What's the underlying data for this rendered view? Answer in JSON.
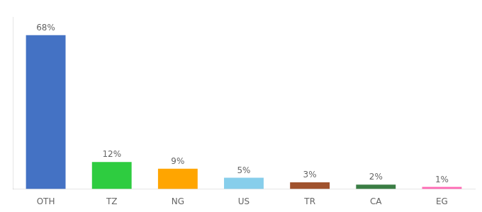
{
  "chart_data": {
    "type": "bar",
    "categories": [
      "OTH",
      "TZ",
      "NG",
      "US",
      "TR",
      "CA",
      "EG"
    ],
    "values": [
      68,
      12,
      9,
      5,
      3,
      2,
      1
    ],
    "value_labels": [
      "68%",
      "12%",
      "9%",
      "5%",
      "3%",
      "2%",
      "1%"
    ],
    "colors": [
      "#4472C4",
      "#2ECC40",
      "#FFA500",
      "#87CEEB",
      "#A0522D",
      "#3A7D44",
      "#FF69B4"
    ],
    "ylim": [
      0,
      76
    ],
    "data_labels": true,
    "tick_labels": "x",
    "grid": false
  }
}
